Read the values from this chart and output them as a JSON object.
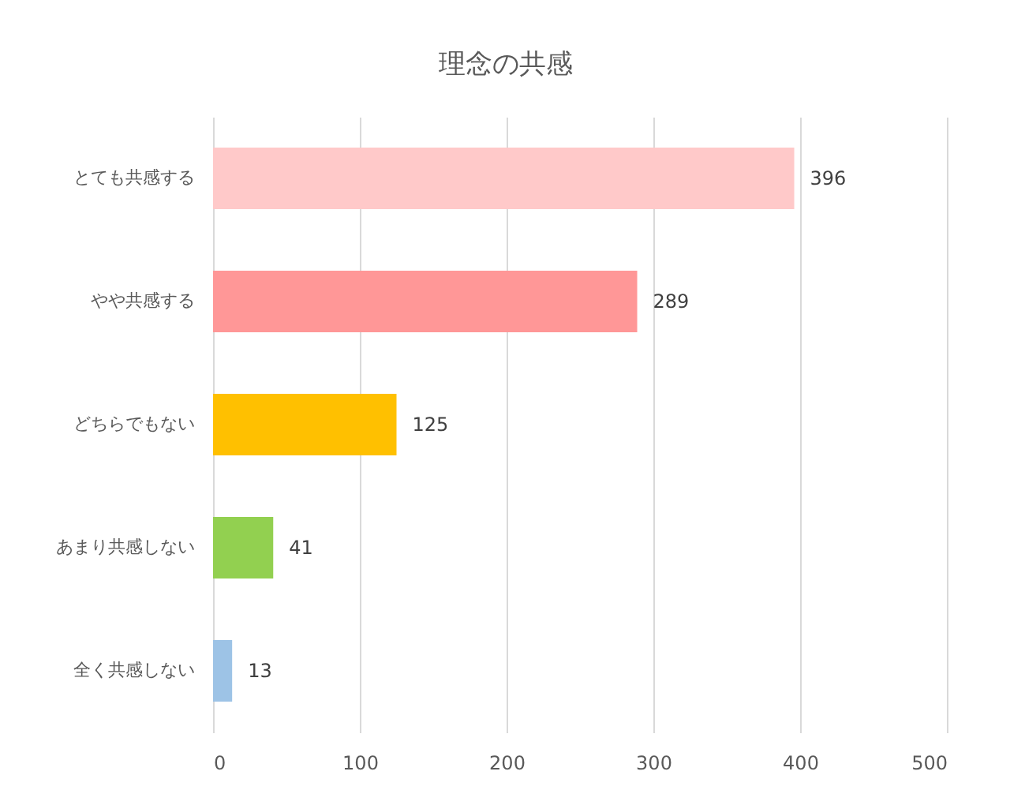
{
  "chart_data": {
    "type": "bar",
    "orientation": "horizontal",
    "title": "理念の共感",
    "categories": [
      "とても共感する",
      "やや共感する",
      "どちらでもない",
      "あまり共感しない",
      "全く共感しない"
    ],
    "values": [
      396,
      289,
      125,
      41,
      13
    ],
    "colors": [
      "#ffc9c9",
      "#ff9797",
      "#ffc000",
      "#92d050",
      "#9dc3e6"
    ],
    "xlim": [
      0,
      500
    ],
    "xticks": [
      0,
      100,
      200,
      300,
      400,
      500
    ],
    "grid": "x",
    "data_labels": true
  }
}
